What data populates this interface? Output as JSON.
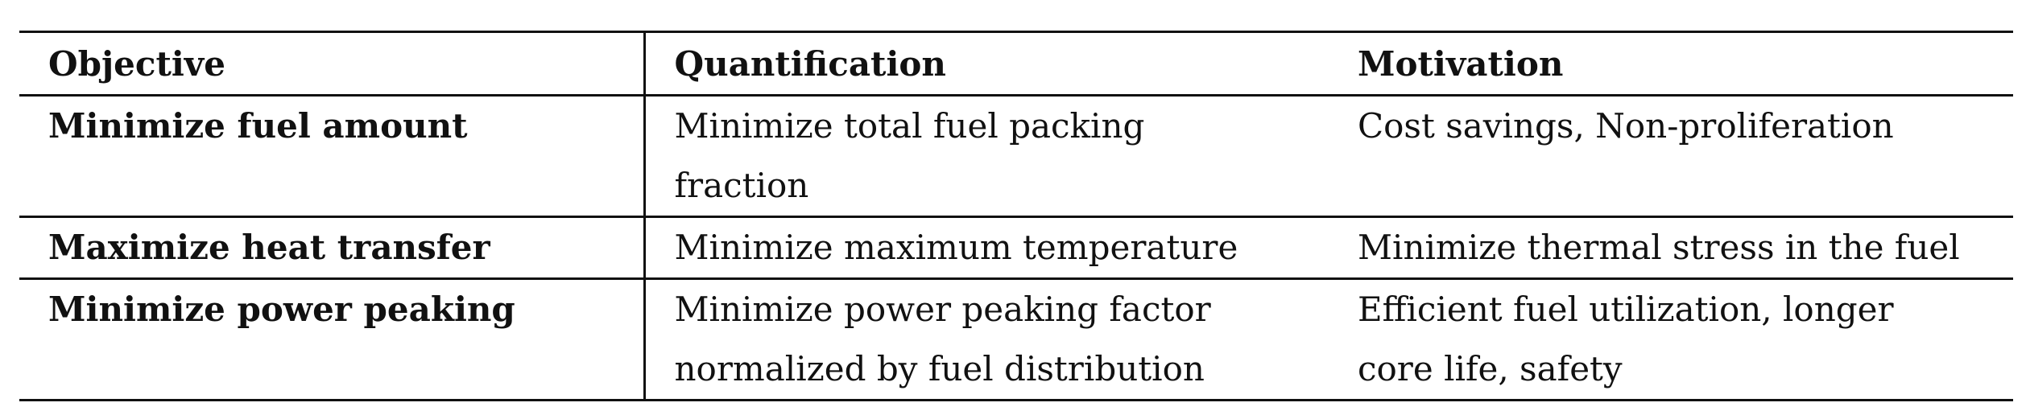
{
  "table": {
    "headers": [
      "Objective",
      "Quantification",
      "Motivation"
    ],
    "rows": [
      {
        "objective": "Minimize fuel amount",
        "quantification_line1": "Minimize total fuel packing",
        "quantification_line2": "fraction",
        "motivation_line1": "Cost savings, Non-proliferation",
        "motivation_line2": ""
      },
      {
        "objective": "Maximize heat transfer",
        "quantification_line1": "Minimize maximum temperature",
        "quantification_line2": "",
        "motivation_line1": "Minimize thermal stress in the fuel",
        "motivation_line2": ""
      },
      {
        "objective": "Minimize power peaking",
        "quantification_line1": "Minimize power peaking factor",
        "quantification_line2": "normalized by fuel distribution",
        "motivation_line1": "Efficient fuel utilization, longer",
        "motivation_line2": "core life, safety"
      }
    ]
  }
}
